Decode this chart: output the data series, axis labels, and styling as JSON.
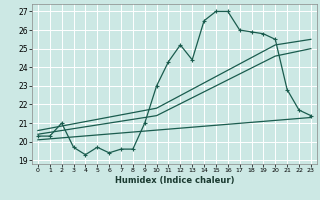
{
  "title": "",
  "xlabel": "Humidex (Indice chaleur)",
  "bg_color": "#cce8e4",
  "grid_color": "#ffffff",
  "line_color": "#1a5c4e",
  "xlim": [
    -0.5,
    23.5
  ],
  "ylim": [
    18.8,
    27.4
  ],
  "xticks": [
    0,
    1,
    2,
    3,
    4,
    5,
    6,
    7,
    8,
    9,
    10,
    11,
    12,
    13,
    14,
    15,
    16,
    17,
    18,
    19,
    20,
    21,
    22,
    23
  ],
  "yticks": [
    19,
    20,
    21,
    22,
    23,
    24,
    25,
    26,
    27
  ],
  "main_x": [
    0,
    1,
    2,
    3,
    4,
    5,
    6,
    7,
    8,
    9,
    10,
    11,
    12,
    13,
    14,
    15,
    16,
    17,
    18,
    19,
    20,
    21,
    22,
    23
  ],
  "main_y": [
    20.3,
    20.3,
    21.0,
    19.7,
    19.3,
    19.7,
    19.4,
    19.6,
    19.6,
    21.0,
    23.0,
    24.3,
    25.2,
    24.4,
    26.5,
    27.0,
    27.0,
    26.0,
    25.9,
    25.8,
    25.5,
    22.8,
    21.7,
    21.4
  ],
  "trend1_x": [
    0,
    10,
    20,
    23
  ],
  "trend1_y": [
    20.6,
    21.8,
    25.2,
    25.5
  ],
  "trend2_x": [
    0,
    10,
    20,
    23
  ],
  "trend2_y": [
    20.4,
    21.4,
    24.6,
    25.0
  ],
  "trend3_x": [
    0,
    23
  ],
  "trend3_y": [
    20.1,
    21.3
  ]
}
